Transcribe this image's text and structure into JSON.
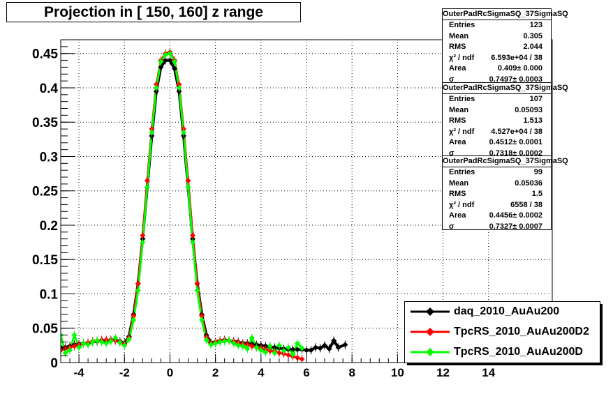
{
  "title": "Projection in [ 150, 160] z range",
  "stats_boxes": [
    {
      "name": "OuterPadRcSigmaSQ_37SigmaSQ",
      "rows": [
        {
          "label": "Entries",
          "value": "123"
        },
        {
          "label": "Mean",
          "value": "0.305"
        },
        {
          "label": "RMS",
          "value": "2.044"
        },
        {
          "label": "χ² / ndf",
          "value": "6.593e+04 / 38"
        },
        {
          "label": "Area",
          "value": "0.409± 0.000"
        },
        {
          "label": "σ",
          "value": "0.7497± 0.0003"
        }
      ]
    },
    {
      "name": "OuterPadRcSigmaSQ_37SigmaSQ",
      "rows": [
        {
          "label": "Entries",
          "value": "107"
        },
        {
          "label": "Mean",
          "value": "0.05093"
        },
        {
          "label": "RMS",
          "value": "1.513"
        },
        {
          "label": "χ² / ndf",
          "value": "4.527e+04 / 38"
        },
        {
          "label": "Area",
          "value": "0.4512± 0.0001"
        },
        {
          "label": "σ",
          "value": "0.7318± 0.0002"
        }
      ]
    },
    {
      "name": "OuterPadRcSigmaSQ_37SigmaSQ",
      "rows": [
        {
          "label": "Entries",
          "value": "99"
        },
        {
          "label": "Mean",
          "value": "0.05036"
        },
        {
          "label": "RMS",
          "value": "1.5"
        },
        {
          "label": "χ² / ndf",
          "value": "6558 / 38"
        },
        {
          "label": "Area",
          "value": "0.4456± 0.0002"
        },
        {
          "label": "σ",
          "value": "0.7327± 0.0007"
        }
      ]
    }
  ],
  "legend": [
    {
      "label": "daq_2010_AuAu200",
      "color": "#000000"
    },
    {
      "label": "TpcRS_2010_AuAu200D2",
      "color": "#ff0000"
    },
    {
      "label": "TpcRS_2010_AuAu200D",
      "color": "#00ff00"
    }
  ],
  "chart_data": {
    "type": "scatter",
    "title": "Projection in [ 150, 160] z range",
    "xlim": [
      -4.8,
      16.8
    ],
    "ylim": [
      0,
      0.47
    ],
    "xticks": [
      -4,
      -2,
      0,
      2,
      4,
      6,
      8,
      10,
      12,
      14
    ],
    "yticks": [
      0,
      0.05,
      0.1,
      0.15,
      0.2,
      0.25,
      0.3,
      0.35,
      0.4,
      0.45
    ],
    "grid": true,
    "legend_position": "bottom-right",
    "series": [
      {
        "name": "daq_2010_AuAu200",
        "color": "#000000",
        "x": [
          -4.8,
          -4.6,
          -4.4,
          -4.2,
          -4.0,
          -3.8,
          -3.6,
          -3.4,
          -3.2,
          -3.0,
          -2.8,
          -2.6,
          -2.4,
          -2.2,
          -2.0,
          -1.8,
          -1.6,
          -1.4,
          -1.2,
          -1.0,
          -0.8,
          -0.6,
          -0.4,
          -0.2,
          0.0,
          0.2,
          0.4,
          0.6,
          0.8,
          1.0,
          1.2,
          1.4,
          1.6,
          1.8,
          2.0,
          2.2,
          2.4,
          2.6,
          2.8,
          3.0,
          3.2,
          3.4,
          3.6,
          3.8,
          4.0,
          4.2,
          4.4,
          4.6,
          4.8,
          5.0,
          5.2,
          5.4,
          5.6,
          5.8,
          6.0,
          6.2,
          6.4,
          6.6,
          6.8,
          7.0,
          7.2,
          7.4,
          7.7
        ],
        "y": [
          0.022,
          0.022,
          0.024,
          0.026,
          0.027,
          0.028,
          0.028,
          0.03,
          0.031,
          0.032,
          0.032,
          0.033,
          0.033,
          0.031,
          0.028,
          0.038,
          0.07,
          0.115,
          0.18,
          0.255,
          0.33,
          0.395,
          0.43,
          0.44,
          0.44,
          0.428,
          0.395,
          0.33,
          0.255,
          0.18,
          0.115,
          0.07,
          0.04,
          0.029,
          0.03,
          0.032,
          0.033,
          0.032,
          0.031,
          0.03,
          0.028,
          0.028,
          0.027,
          0.026,
          0.025,
          0.024,
          0.023,
          0.022,
          0.021,
          0.02,
          0.019,
          0.019,
          0.019,
          0.019,
          0.018,
          0.018,
          0.022,
          0.021,
          0.025,
          0.02,
          0.032,
          0.022,
          0.026
        ]
      },
      {
        "name": "TpcRS_2010_AuAu200D2",
        "color": "#ff0000",
        "x": [
          -4.8,
          -4.6,
          -4.4,
          -4.2,
          -4.0,
          -3.8,
          -3.6,
          -3.4,
          -3.2,
          -3.0,
          -2.8,
          -2.6,
          -2.4,
          -2.2,
          -2.0,
          -1.8,
          -1.6,
          -1.4,
          -1.2,
          -1.0,
          -0.8,
          -0.6,
          -0.4,
          -0.2,
          0.0,
          0.2,
          0.4,
          0.6,
          0.8,
          1.0,
          1.2,
          1.4,
          1.6,
          1.8,
          2.0,
          2.2,
          2.4,
          2.6,
          2.8,
          3.0,
          3.2,
          3.4,
          3.6,
          3.8,
          4.0,
          4.2,
          4.4,
          4.6,
          4.8,
          5.0,
          5.2,
          5.4,
          5.6,
          5.8
        ],
        "y": [
          0.018,
          0.02,
          0.022,
          0.024,
          0.026,
          0.028,
          0.029,
          0.031,
          0.032,
          0.033,
          0.033,
          0.033,
          0.032,
          0.03,
          0.027,
          0.036,
          0.068,
          0.115,
          0.185,
          0.265,
          0.34,
          0.405,
          0.44,
          0.45,
          0.452,
          0.44,
          0.405,
          0.34,
          0.265,
          0.185,
          0.115,
          0.068,
          0.037,
          0.028,
          0.03,
          0.032,
          0.033,
          0.032,
          0.031,
          0.029,
          0.027,
          0.026,
          0.024,
          0.022,
          0.021,
          0.019,
          0.017,
          0.016,
          0.014,
          0.013,
          0.011,
          0.009,
          0.007,
          0.005
        ]
      },
      {
        "name": "TpcRS_2010_AuAu200D",
        "color": "#00ff00",
        "x": [
          -4.8,
          -4.6,
          -4.4,
          -4.2,
          -4.0,
          -3.8,
          -3.6,
          -3.4,
          -3.2,
          -3.0,
          -2.8,
          -2.6,
          -2.4,
          -2.2,
          -2.0,
          -1.8,
          -1.6,
          -1.4,
          -1.2,
          -1.0,
          -0.8,
          -0.6,
          -0.4,
          -0.2,
          0.0,
          0.2,
          0.4,
          0.6,
          0.8,
          1.0,
          1.2,
          1.4,
          1.6,
          1.8,
          2.0,
          2.2,
          2.4,
          2.6,
          2.8,
          3.0,
          3.2,
          3.4,
          3.6,
          3.8,
          4.0,
          4.2,
          4.4,
          4.6,
          4.8,
          5.0,
          5.2,
          5.4,
          5.6,
          5.8
        ],
        "y": [
          0.04,
          0.014,
          0.018,
          0.04,
          0.022,
          0.028,
          0.026,
          0.03,
          0.032,
          0.03,
          0.028,
          0.031,
          0.036,
          0.029,
          0.025,
          0.034,
          0.062,
          0.105,
          0.175,
          0.255,
          0.335,
          0.4,
          0.438,
          0.448,
          0.45,
          0.438,
          0.4,
          0.335,
          0.255,
          0.175,
          0.105,
          0.062,
          0.033,
          0.026,
          0.028,
          0.03,
          0.031,
          0.032,
          0.028,
          0.025,
          0.024,
          0.02,
          0.036,
          0.022,
          0.018,
          0.015,
          0.024,
          0.014,
          0.025,
          0.017,
          0.022,
          0.012,
          0.028,
          0.021
        ]
      }
    ]
  }
}
